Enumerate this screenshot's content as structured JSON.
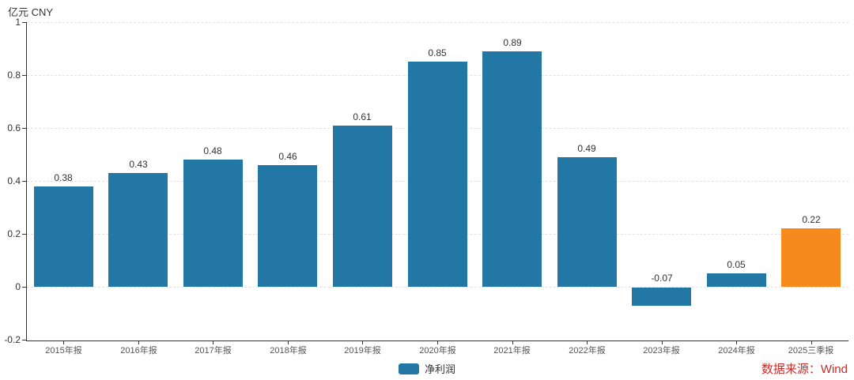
{
  "header": {
    "unit_label": "亿元  CNY"
  },
  "legend": {
    "items": [
      {
        "label": "净利润",
        "color": "#2377a4"
      }
    ]
  },
  "source": {
    "text": "数据来源：Wind",
    "color": "#cc2a27"
  },
  "chart_data": {
    "type": "bar",
    "title": "",
    "xlabel": "",
    "ylabel": "亿元 CNY",
    "categories": [
      "2015年报",
      "2016年报",
      "2017年报",
      "2018年报",
      "2019年报",
      "2020年报",
      "2021年报",
      "2022年报",
      "2023年报",
      "2024年报",
      "2025三季报"
    ],
    "series": [
      {
        "name": "净利润",
        "values": [
          0.38,
          0.43,
          0.48,
          0.46,
          0.61,
          0.85,
          0.89,
          0.49,
          -0.07,
          0.05,
          0.22
        ]
      }
    ],
    "value_labels": [
      "0.38",
      "0.43",
      "0.48",
      "0.46",
      "0.61",
      "0.85",
      "0.89",
      "0.49",
      "-0.07",
      "0.05",
      "0.22"
    ],
    "bar_default_color": "#2377a4",
    "bar_highlight_color": "#f78a1d",
    "bar_highlight_index": 10,
    "ylim": [
      -0.2,
      1
    ],
    "yticks": [
      1,
      0.8,
      0.6,
      0.4,
      0.2,
      0,
      -0.2
    ],
    "ytick_labels": [
      "1",
      "0.8",
      "0.6",
      "0.4",
      "0.2",
      "0",
      "-0.2"
    ],
    "grid": true,
    "grid_style": "dashed",
    "legend_position": "bottom"
  }
}
